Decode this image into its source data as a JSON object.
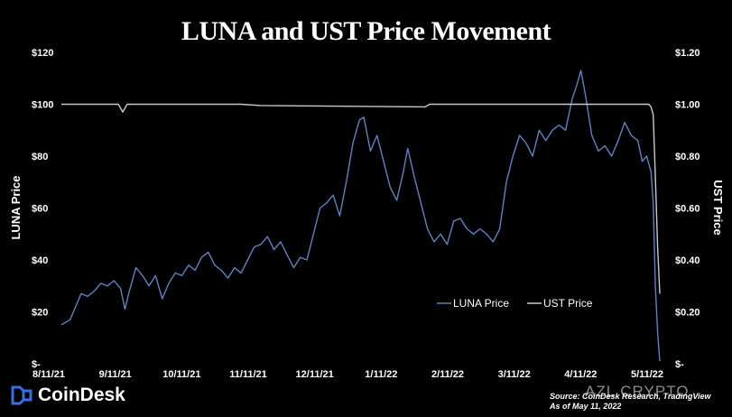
{
  "title": "LUNA and UST Price Movement",
  "brand": {
    "name": "CoinDesk",
    "logo_icon": "coindesk-logo-icon"
  },
  "source": [
    "Source: CoinDesk Research, TradingView",
    "As of May 11, 2022"
  ],
  "watermark": "AZL CRYPTO",
  "colors": {
    "background": "#000000",
    "luna": "#5b84c4",
    "ust": "#c9c9c9",
    "text": "#ffffff"
  },
  "chart_data": {
    "type": "line",
    "title": "LUNA and UST Price Movement",
    "y_left_label": "LUNA Price",
    "y_right_label": "UST Price",
    "y_left_ticks": [
      "$-",
      "$20",
      "$40",
      "$60",
      "$80",
      "$100",
      "$120"
    ],
    "y_right_ticks": [
      "$-",
      "$0.20",
      "$0.40",
      "$0.60",
      "$0.80",
      "$1.00",
      "$1.20"
    ],
    "y_left_range": [
      0,
      120
    ],
    "y_right_range": [
      0,
      1.2
    ],
    "x_range": [
      "2021-08-11",
      "2022-05-11"
    ],
    "x_ticks": [
      "8/11/21",
      "9/11/21",
      "10/11/21",
      "11/11/21",
      "12/11/21",
      "1/11/22",
      "2/11/22",
      "3/11/22",
      "4/11/22",
      "5/11/22"
    ],
    "legend": {
      "position": "lower-right",
      "entries": [
        "LUNA Price",
        "UST Price"
      ]
    },
    "grid": false,
    "series": [
      {
        "name": "LUNA Price",
        "color": "#5b84c4",
        "axis": "left",
        "points": [
          [
            "2021-08-11",
            15
          ],
          [
            "2021-08-13",
            16
          ],
          [
            "2021-08-15",
            17
          ],
          [
            "2021-08-18",
            23
          ],
          [
            "2021-08-20",
            27
          ],
          [
            "2021-08-23",
            26
          ],
          [
            "2021-08-26",
            28
          ],
          [
            "2021-08-29",
            31
          ],
          [
            "2021-09-01",
            30
          ],
          [
            "2021-09-04",
            32
          ],
          [
            "2021-09-07",
            29
          ],
          [
            "2021-09-09",
            21
          ],
          [
            "2021-09-11",
            28
          ],
          [
            "2021-09-14",
            37
          ],
          [
            "2021-09-17",
            34
          ],
          [
            "2021-09-20",
            30
          ],
          [
            "2021-09-23",
            34
          ],
          [
            "2021-09-26",
            25
          ],
          [
            "2021-09-29",
            31
          ],
          [
            "2021-10-02",
            35
          ],
          [
            "2021-10-05",
            34
          ],
          [
            "2021-10-08",
            38
          ],
          [
            "2021-10-11",
            36
          ],
          [
            "2021-10-14",
            41
          ],
          [
            "2021-10-17",
            43
          ],
          [
            "2021-10-20",
            38
          ],
          [
            "2021-10-23",
            36
          ],
          [
            "2021-10-26",
            33
          ],
          [
            "2021-10-29",
            37
          ],
          [
            "2021-11-01",
            35
          ],
          [
            "2021-11-04",
            40
          ],
          [
            "2021-11-07",
            45
          ],
          [
            "2021-11-10",
            46
          ],
          [
            "2021-11-13",
            49
          ],
          [
            "2021-11-16",
            44
          ],
          [
            "2021-11-19",
            47
          ],
          [
            "2021-11-22",
            42
          ],
          [
            "2021-11-25",
            37
          ],
          [
            "2021-11-28",
            41
          ],
          [
            "2021-12-01",
            40
          ],
          [
            "2021-12-04",
            50
          ],
          [
            "2021-12-07",
            60
          ],
          [
            "2021-12-10",
            62
          ],
          [
            "2021-12-13",
            65
          ],
          [
            "2021-12-16",
            57
          ],
          [
            "2021-12-19",
            70
          ],
          [
            "2021-12-22",
            85
          ],
          [
            "2021-12-25",
            94
          ],
          [
            "2021-12-27",
            95
          ],
          [
            "2021-12-30",
            82
          ],
          [
            "2022-01-02",
            88
          ],
          [
            "2022-01-05",
            78
          ],
          [
            "2022-01-08",
            68
          ],
          [
            "2022-01-11",
            63
          ],
          [
            "2022-01-14",
            74
          ],
          [
            "2022-01-16",
            83
          ],
          [
            "2022-01-19",
            72
          ],
          [
            "2022-01-22",
            62
          ],
          [
            "2022-01-25",
            52
          ],
          [
            "2022-01-28",
            47
          ],
          [
            "2022-01-31",
            50
          ],
          [
            "2022-02-03",
            46
          ],
          [
            "2022-02-06",
            55
          ],
          [
            "2022-02-09",
            56
          ],
          [
            "2022-02-12",
            52
          ],
          [
            "2022-02-15",
            50
          ],
          [
            "2022-02-18",
            52
          ],
          [
            "2022-02-21",
            50
          ],
          [
            "2022-02-24",
            47
          ],
          [
            "2022-02-27",
            52
          ],
          [
            "2022-03-02",
            70
          ],
          [
            "2022-03-05",
            80
          ],
          [
            "2022-03-08",
            88
          ],
          [
            "2022-03-11",
            85
          ],
          [
            "2022-03-14",
            80
          ],
          [
            "2022-03-17",
            90
          ],
          [
            "2022-03-20",
            86
          ],
          [
            "2022-03-23",
            90
          ],
          [
            "2022-03-26",
            92
          ],
          [
            "2022-03-29",
            90
          ],
          [
            "2022-04-01",
            102
          ],
          [
            "2022-04-03",
            107
          ],
          [
            "2022-04-05",
            113
          ],
          [
            "2022-04-07",
            104
          ],
          [
            "2022-04-10",
            88
          ],
          [
            "2022-04-13",
            82
          ],
          [
            "2022-04-16",
            84
          ],
          [
            "2022-04-19",
            80
          ],
          [
            "2022-04-22",
            86
          ],
          [
            "2022-04-25",
            93
          ],
          [
            "2022-04-28",
            88
          ],
          [
            "2022-05-01",
            86
          ],
          [
            "2022-05-03",
            78
          ],
          [
            "2022-05-05",
            80
          ],
          [
            "2022-05-07",
            74
          ],
          [
            "2022-05-08",
            62
          ],
          [
            "2022-05-09",
            30
          ],
          [
            "2022-05-10",
            12
          ],
          [
            "2022-05-11",
            1
          ]
        ]
      },
      {
        "name": "UST Price",
        "color": "#c9c9c9",
        "axis": "right",
        "points": [
          [
            "2021-08-11",
            1.0
          ],
          [
            "2021-09-06",
            1.0
          ],
          [
            "2021-09-08",
            0.97
          ],
          [
            "2021-09-10",
            1.0
          ],
          [
            "2021-11-01",
            1.0
          ],
          [
            "2021-11-10",
            0.995
          ],
          [
            "2022-01-24",
            0.99
          ],
          [
            "2022-01-26",
            1.0
          ],
          [
            "2022-05-06",
            1.0
          ],
          [
            "2022-05-07",
            0.99
          ],
          [
            "2022-05-08",
            0.96
          ],
          [
            "2022-05-09",
            0.72
          ],
          [
            "2022-05-10",
            0.45
          ],
          [
            "2022-05-11",
            0.27
          ]
        ]
      }
    ]
  }
}
